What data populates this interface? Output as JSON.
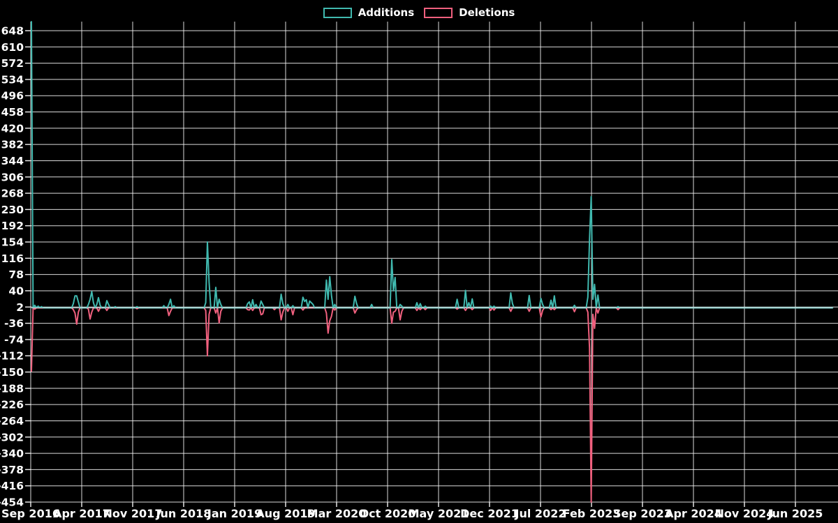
{
  "legend": {
    "additions_label": "Additions",
    "deletions_label": "Deletions"
  },
  "chart_data": {
    "type": "line",
    "title": "",
    "xlabel": "",
    "ylabel": "",
    "background_color": "#000000",
    "grid": true,
    "grid_color": "#f2f2f2",
    "text_color": "#ffffff",
    "legend_position": "top-center",
    "x_axis": {
      "tick_labels": [
        "Sep 2016",
        "Apr 2017",
        "Nov 2017",
        "Jun 2018",
        "Jan 2019",
        "Aug 2019",
        "Mar 2020",
        "Oct 2020",
        "May 2021",
        "Dec 2021",
        "Jul 2022",
        "Feb 2023",
        "Sep 2023",
        "Apr 2024",
        "Nov 2024",
        "Jun 2025"
      ],
      "tick_interval_months": 7
    },
    "y_axis": {
      "max": 648,
      "min": -454,
      "tick_step": 38,
      "tick_labels": [
        648,
        610,
        572,
        534,
        496,
        458,
        420,
        382,
        344,
        306,
        268,
        230,
        192,
        154,
        116,
        78,
        40,
        2,
        -36,
        -74,
        -112,
        -150,
        -188,
        -226,
        -264,
        -302,
        -340,
        -378,
        -416,
        -454
      ]
    },
    "weeks_total": 479,
    "note": "weekly additions/deletions; first Additions value exceeds axis max and is clipped at plot top; default value between listed points is 0",
    "series": [
      {
        "name": "Additions",
        "color": "#40b9af",
        "default": 0,
        "points": [
          [
            0,
            669
          ],
          [
            2,
            6
          ],
          [
            4,
            4
          ],
          [
            6,
            3
          ],
          [
            25,
            10
          ],
          [
            26,
            28
          ],
          [
            27,
            28
          ],
          [
            28,
            14
          ],
          [
            34,
            8
          ],
          [
            35,
            20
          ],
          [
            36,
            38
          ],
          [
            37,
            12
          ],
          [
            39,
            8
          ],
          [
            40,
            24
          ],
          [
            41,
            6
          ],
          [
            45,
            17
          ],
          [
            46,
            8
          ],
          [
            50,
            3
          ],
          [
            63,
            3
          ],
          [
            79,
            5
          ],
          [
            82,
            8
          ],
          [
            83,
            20
          ],
          [
            85,
            5
          ],
          [
            104,
            12
          ],
          [
            105,
            154
          ],
          [
            106,
            60
          ],
          [
            110,
            48
          ],
          [
            112,
            20
          ],
          [
            113,
            8
          ],
          [
            129,
            10
          ],
          [
            130,
            14
          ],
          [
            132,
            19
          ],
          [
            134,
            8
          ],
          [
            137,
            16
          ],
          [
            138,
            8
          ],
          [
            149,
            32
          ],
          [
            150,
            10
          ],
          [
            153,
            8
          ],
          [
            156,
            5
          ],
          [
            162,
            25
          ],
          [
            163,
            15
          ],
          [
            164,
            19
          ],
          [
            166,
            16
          ],
          [
            167,
            12
          ],
          [
            168,
            8
          ],
          [
            176,
            65
          ],
          [
            177,
            20
          ],
          [
            178,
            73
          ],
          [
            179,
            30
          ],
          [
            181,
            8
          ],
          [
            193,
            27
          ],
          [
            194,
            10
          ],
          [
            203,
            8
          ],
          [
            215,
            113
          ],
          [
            216,
            40
          ],
          [
            217,
            71
          ],
          [
            220,
            8
          ],
          [
            221,
            4
          ],
          [
            230,
            12
          ],
          [
            232,
            10
          ],
          [
            235,
            4
          ],
          [
            254,
            20
          ],
          [
            259,
            41
          ],
          [
            261,
            12
          ],
          [
            263,
            21
          ],
          [
            274,
            4
          ],
          [
            276,
            4
          ],
          [
            286,
            35
          ],
          [
            287,
            10
          ],
          [
            297,
            29
          ],
          [
            304,
            22
          ],
          [
            305,
            8
          ],
          [
            310,
            18
          ],
          [
            312,
            28
          ],
          [
            324,
            6
          ],
          [
            332,
            25
          ],
          [
            333,
            160
          ],
          [
            334,
            260
          ],
          [
            335,
            20
          ],
          [
            336,
            55
          ],
          [
            338,
            30
          ],
          [
            350,
            3
          ]
        ]
      },
      {
        "name": "Deletions",
        "color": "#f0607e",
        "default": 0,
        "points": [
          [
            0,
            -148
          ],
          [
            2,
            -3
          ],
          [
            25,
            -4
          ],
          [
            26,
            -12
          ],
          [
            27,
            -38
          ],
          [
            28,
            -10
          ],
          [
            34,
            -3
          ],
          [
            35,
            -26
          ],
          [
            36,
            -10
          ],
          [
            40,
            -8
          ],
          [
            45,
            -6
          ],
          [
            63,
            -2
          ],
          [
            82,
            -18
          ],
          [
            83,
            -8
          ],
          [
            104,
            -6
          ],
          [
            105,
            -112
          ],
          [
            106,
            -15
          ],
          [
            110,
            -12
          ],
          [
            112,
            -35
          ],
          [
            113,
            -8
          ],
          [
            129,
            -4
          ],
          [
            130,
            -5
          ],
          [
            132,
            -6
          ],
          [
            137,
            -16
          ],
          [
            138,
            -14
          ],
          [
            145,
            -4
          ],
          [
            149,
            -28
          ],
          [
            150,
            -10
          ],
          [
            153,
            -8
          ],
          [
            156,
            -16
          ],
          [
            162,
            -5
          ],
          [
            176,
            -12
          ],
          [
            177,
            -59
          ],
          [
            178,
            -30
          ],
          [
            179,
            -20
          ],
          [
            181,
            -5
          ],
          [
            193,
            -12
          ],
          [
            194,
            -4
          ],
          [
            215,
            -36
          ],
          [
            216,
            -10
          ],
          [
            217,
            -8
          ],
          [
            220,
            -28
          ],
          [
            221,
            -8
          ],
          [
            230,
            -6
          ],
          [
            232,
            -4
          ],
          [
            235,
            -4
          ],
          [
            254,
            -3
          ],
          [
            259,
            -6
          ],
          [
            263,
            -4
          ],
          [
            274,
            -6
          ],
          [
            276,
            -5
          ],
          [
            286,
            -8
          ],
          [
            297,
            -8
          ],
          [
            304,
            -21
          ],
          [
            305,
            -6
          ],
          [
            310,
            -4
          ],
          [
            312,
            -4
          ],
          [
            324,
            -9
          ],
          [
            332,
            -10
          ],
          [
            333,
            -94
          ],
          [
            334,
            -454
          ],
          [
            335,
            -15
          ],
          [
            336,
            -48
          ],
          [
            338,
            -12
          ],
          [
            350,
            -4
          ]
        ]
      }
    ],
    "baseline_overlay_color": "#cfe3e6"
  }
}
